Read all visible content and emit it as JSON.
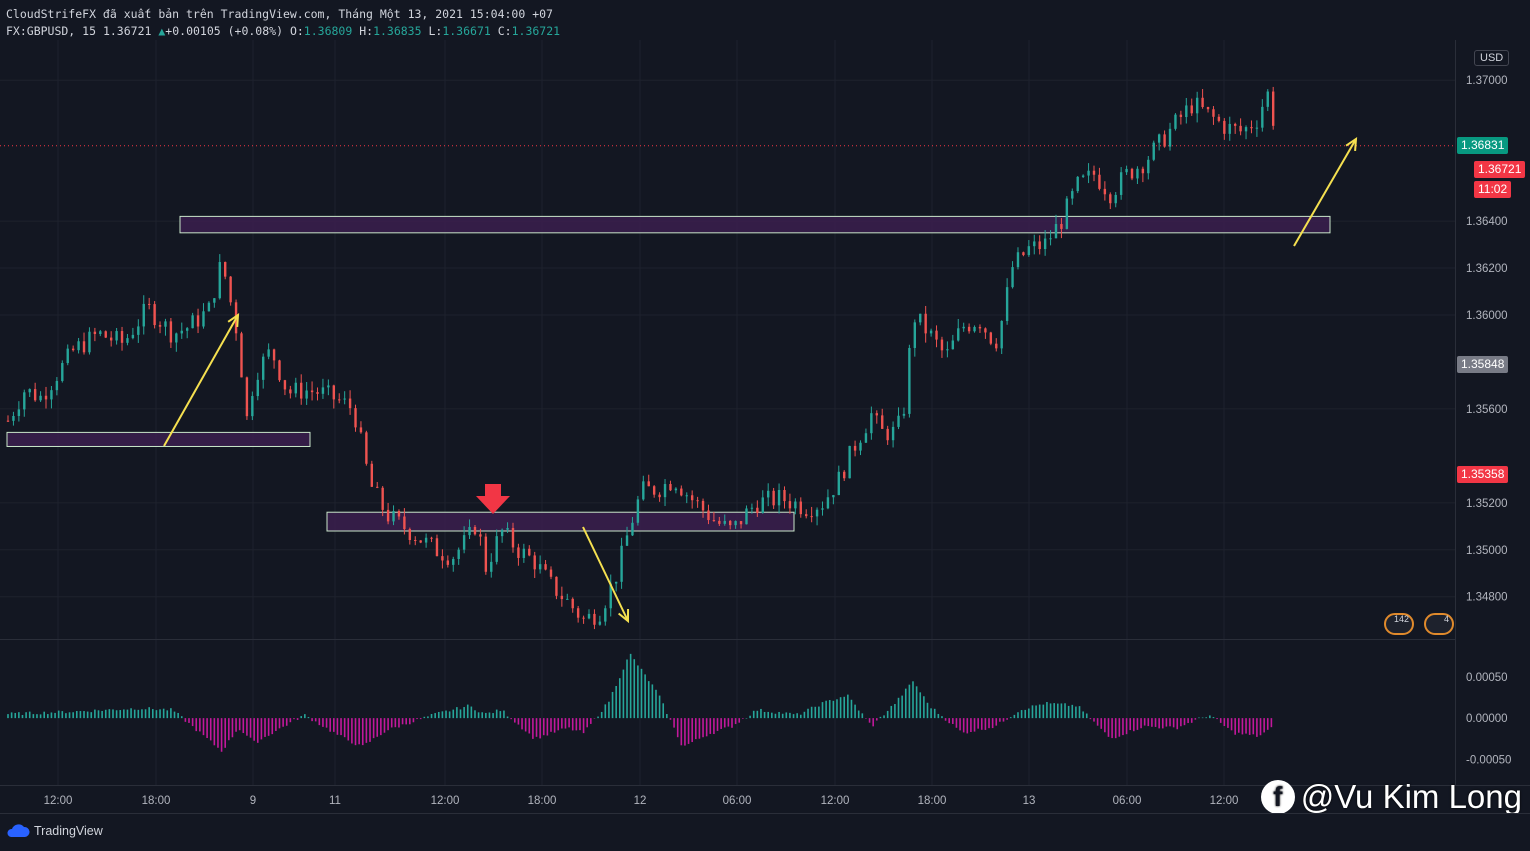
{
  "header": {
    "publish_line": "CloudStrifeFX đã xuất bản trên TradingView.com, Tháng Một 13, 2021 15:04:00 +07",
    "symbol": "FX:GBPUSD, 15",
    "last": "1.36721",
    "change": "+0.00105 (+0.08%)",
    "o_label": "O:",
    "o_value": "1.36809",
    "h_label": "H:",
    "h_value": "1.36835",
    "l_label": "L:",
    "l_value": "1.36671",
    "c_label": "C:",
    "c_value": "1.36721"
  },
  "price_axis": {
    "currency": "USD",
    "ticks": [
      "1.37000",
      "1.36400",
      "1.36200",
      "1.36000",
      "1.35600",
      "1.35200",
      "1.35000",
      "1.34800"
    ],
    "macd_ticks": [
      "0.00050",
      "0.00000",
      "-0.00050"
    ]
  },
  "price_labels": [
    {
      "text": "1.36831",
      "color": "#089981"
    },
    {
      "text": "1.36721",
      "color": "#f23645"
    },
    {
      "text": "11:02",
      "color": "#f23645"
    },
    {
      "text": "1.35848",
      "color": "#787b86"
    },
    {
      "text": "1.35358",
      "color": "#f23645"
    }
  ],
  "time_axis": [
    "12:00",
    "18:00",
    "9",
    "11",
    "12:00",
    "18:00",
    "12",
    "06:00",
    "12:00",
    "18:00",
    "13",
    "06:00",
    "12:00"
  ],
  "events": [
    "142",
    "4"
  ],
  "footer": {
    "brand": "TradingView"
  },
  "watermark": {
    "text": "@Vu Kim Long",
    "icon": "facebook-icon"
  },
  "colors": {
    "up": "#26a69a",
    "down": "#ef5350",
    "zone_fill": "#3b1f4e",
    "zone_border": "#c8e6c9",
    "arrow": "#f5e050",
    "red_arrow": "#f23645",
    "macd_pos": "#26a69a",
    "macd_neg": "#c2189b"
  },
  "chart_data": {
    "type": "candlestick",
    "symbol": "GBPUSD",
    "timeframe": "15",
    "ylim": [
      1.3462,
      1.3715
    ],
    "approx_path": [
      [
        0,
        1.3555
      ],
      [
        10,
        1.3568
      ],
      [
        20,
        1.3565
      ],
      [
        30,
        1.3575
      ],
      [
        40,
        1.3585
      ],
      [
        55,
        1.3592
      ],
      [
        70,
        1.3588
      ],
      [
        85,
        1.3603
      ],
      [
        100,
        1.3592
      ],
      [
        110,
        1.3595
      ],
      [
        122,
        1.3602
      ],
      [
        130,
        1.3623
      ],
      [
        140,
        1.359
      ],
      [
        145,
        1.3555
      ],
      [
        150,
        1.3575
      ],
      [
        160,
        1.3585
      ],
      [
        170,
        1.3567
      ],
      [
        180,
        1.3568
      ],
      [
        190,
        1.3567
      ],
      [
        200,
        1.3564
      ],
      [
        210,
        1.356
      ],
      [
        220,
        1.3528
      ],
      [
        230,
        1.3515
      ],
      [
        240,
        1.351
      ],
      [
        250,
        1.3505
      ],
      [
        260,
        1.35
      ],
      [
        270,
        1.3497
      ],
      [
        280,
        1.3505
      ],
      [
        285,
        1.3512
      ],
      [
        290,
        1.3492
      ],
      [
        300,
        1.3508
      ],
      [
        310,
        1.35
      ],
      [
        320,
        1.3495
      ],
      [
        330,
        1.3485
      ],
      [
        340,
        1.3478
      ],
      [
        350,
        1.347
      ],
      [
        360,
        1.3474
      ],
      [
        370,
        1.349
      ],
      [
        378,
        1.351
      ],
      [
        385,
        1.3525
      ],
      [
        395,
        1.3526
      ],
      [
        405,
        1.353
      ],
      [
        415,
        1.3522
      ],
      [
        430,
        1.3512
      ],
      [
        440,
        1.3508
      ],
      [
        448,
        1.3515
      ],
      [
        455,
        1.352
      ],
      [
        470,
        1.3522
      ],
      [
        485,
        1.3518
      ],
      [
        495,
        1.352
      ],
      [
        505,
        1.353
      ],
      [
        515,
        1.3545
      ],
      [
        525,
        1.3558
      ],
      [
        530,
        1.355
      ],
      [
        540,
        1.355
      ],
      [
        545,
        1.3562
      ],
      [
        550,
        1.36
      ],
      [
        560,
        1.3592
      ],
      [
        570,
        1.3582
      ],
      [
        580,
        1.3595
      ],
      [
        590,
        1.3598
      ],
      [
        600,
        1.3588
      ],
      [
        605,
        1.36
      ],
      [
        610,
        1.362
      ],
      [
        620,
        1.3628
      ],
      [
        630,
        1.363
      ],
      [
        640,
        1.364
      ],
      [
        650,
        1.3655
      ],
      [
        660,
        1.366
      ],
      [
        670,
        1.3652
      ],
      [
        680,
        1.366
      ],
      [
        690,
        1.3665
      ],
      [
        700,
        1.3673
      ],
      [
        710,
        1.3682
      ],
      [
        720,
        1.369
      ],
      [
        730,
        1.3685
      ],
      [
        740,
        1.368
      ],
      [
        750,
        1.3678
      ],
      [
        760,
        1.3684
      ],
      [
        765,
        1.3696
      ],
      [
        770,
        1.368
      ]
    ],
    "zones": [
      {
        "name": "support-left",
        "price_low": 1.3544,
        "price_high": 1.355
      },
      {
        "name": "resistance-mid",
        "price_low": 1.3508,
        "price_high": 1.3516
      },
      {
        "name": "resistance-top",
        "price_low": 1.3635,
        "price_high": 1.3642
      }
    ],
    "current_price": 1.36721,
    "price_labels": [
      1.36831,
      1.36721,
      1.35848,
      1.35358
    ],
    "macd_histogram_ylim": [
      -0.00075,
      0.00085
    ],
    "macd_path": [
      [
        0,
        5e-05
      ],
      [
        40,
        8e-05
      ],
      [
        80,
        0.00012
      ],
      [
        100,
        0.0001
      ],
      [
        130,
        -0.0004
      ],
      [
        140,
        -0.00012
      ],
      [
        150,
        -0.0003
      ],
      [
        180,
        4e-05
      ],
      [
        200,
        -0.0002
      ],
      [
        215,
        -0.00035
      ],
      [
        230,
        -0.00015
      ],
      [
        260,
        5e-05
      ],
      [
        280,
        0.00015
      ],
      [
        290,
        5e-05
      ],
      [
        300,
        0.0001
      ],
      [
        320,
        -0.00025
      ],
      [
        340,
        -0.00012
      ],
      [
        350,
        -0.00018
      ],
      [
        365,
        0.0002
      ],
      [
        378,
        0.00078
      ],
      [
        395,
        0.0003
      ],
      [
        410,
        -0.00035
      ],
      [
        425,
        -0.0002
      ],
      [
        440,
        -0.0001
      ],
      [
        455,
        0.0001
      ],
      [
        480,
        4e-05
      ],
      [
        495,
        0.00018
      ],
      [
        510,
        0.00028
      ],
      [
        525,
        -0.0001
      ],
      [
        540,
        0.0002
      ],
      [
        550,
        0.00045
      ],
      [
        560,
        0.00015
      ],
      [
        580,
        -0.00018
      ],
      [
        600,
        -0.0001
      ],
      [
        615,
        0.0001
      ],
      [
        630,
        0.00018
      ],
      [
        650,
        0.00015
      ],
      [
        670,
        -0.00025
      ],
      [
        690,
        -0.0001
      ],
      [
        710,
        -0.00012
      ],
      [
        730,
        4e-05
      ],
      [
        745,
        -0.00018
      ],
      [
        760,
        -0.00022
      ],
      [
        770,
        -0.0001
      ]
    ]
  }
}
